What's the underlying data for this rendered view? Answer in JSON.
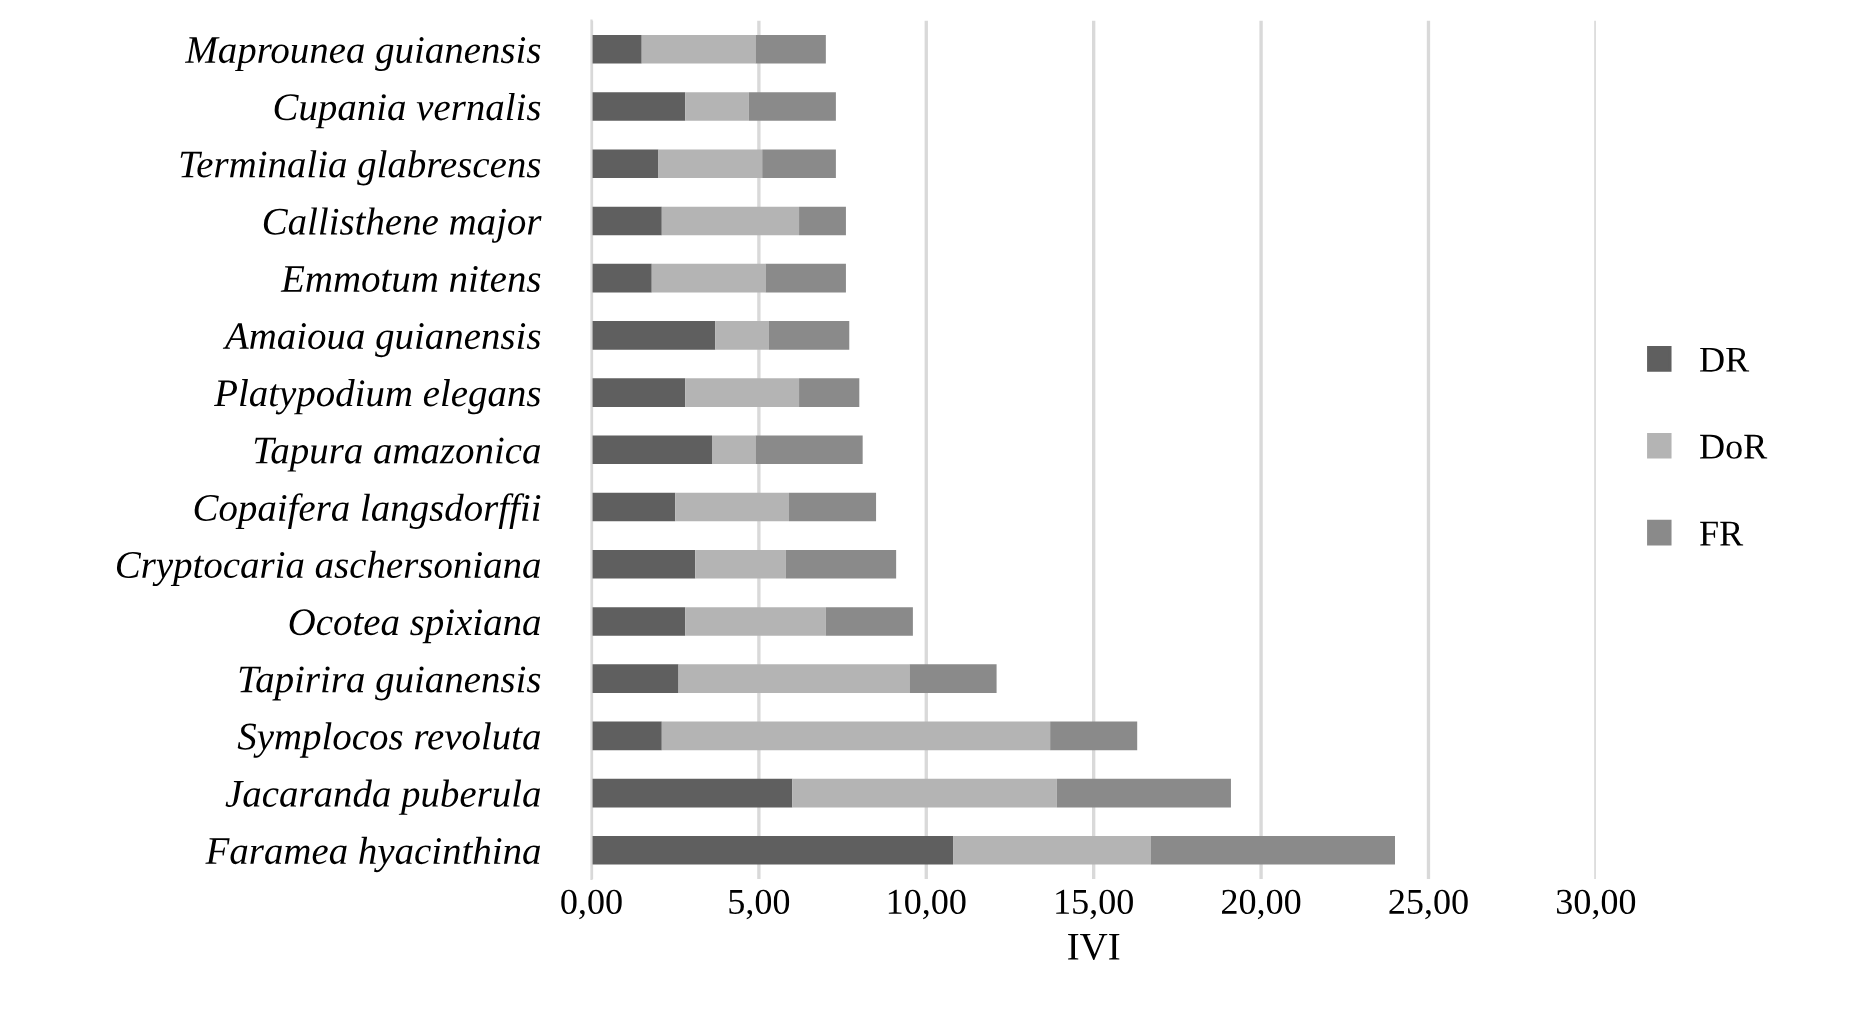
{
  "chart_data": {
    "type": "bar",
    "orientation": "horizontal",
    "stacked": true,
    "xlabel": "IVI",
    "categories": [
      "Maprounea guianensis",
      "Cupania vernalis",
      "Terminalia glabrescens",
      "Callisthene major",
      "Emmotum nitens",
      "Amaioua guianensis",
      "Platypodium elegans",
      "Tapura amazonica",
      "Copaifera langsdorffii",
      "Cryptocaria aschersoniana",
      "Ocotea spixiana",
      "Tapirira guianensis",
      "Symplocos revoluta",
      "Jacaranda puberula",
      "Faramea hyacinthina"
    ],
    "series": [
      {
        "name": "DR",
        "color": "#5f5f5f",
        "values": [
          1.5,
          2.8,
          2.0,
          2.1,
          1.8,
          3.7,
          2.8,
          3.6,
          2.5,
          3.1,
          2.8,
          2.6,
          2.1,
          6.0,
          10.8
        ]
      },
      {
        "name": "DoR",
        "color": "#b4b4b4",
        "values": [
          3.4,
          1.9,
          3.1,
          4.1,
          3.4,
          1.6,
          3.4,
          1.3,
          3.4,
          2.7,
          4.2,
          6.9,
          11.6,
          7.9,
          5.9
        ]
      },
      {
        "name": "FR",
        "color": "#8a8a8a",
        "values": [
          2.1,
          2.6,
          2.2,
          1.4,
          2.4,
          2.4,
          1.8,
          3.2,
          2.6,
          3.3,
          2.6,
          2.6,
          2.6,
          5.2,
          7.3
        ]
      }
    ],
    "xlim": [
      0,
      30
    ],
    "xticks": [
      {
        "value": 0,
        "label": "0,00"
      },
      {
        "value": 5,
        "label": "5,00"
      },
      {
        "value": 10,
        "label": "10,00"
      },
      {
        "value": 15,
        "label": "15,00"
      },
      {
        "value": 20,
        "label": "20,00"
      },
      {
        "value": 25,
        "label": "25,00"
      },
      {
        "value": 30,
        "label": "30,00"
      }
    ],
    "grid": "x",
    "legend": "right"
  }
}
